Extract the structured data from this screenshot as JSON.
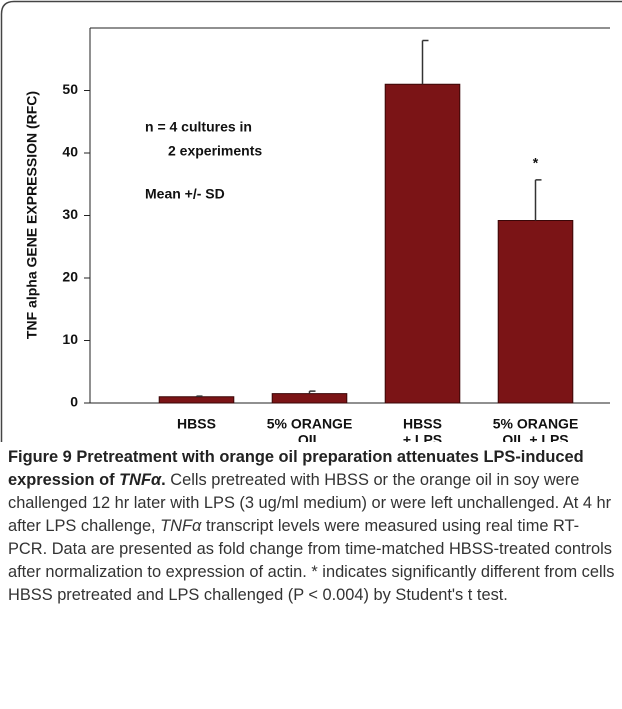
{
  "chart_data": {
    "type": "bar",
    "y_label": "TNF alpha GENE EXPRESSION (RFC)",
    "categories": [
      [
        "HBSS"
      ],
      [
        "5% ORANGE",
        "OIL"
      ],
      [
        "HBSS",
        "+ LPS"
      ],
      [
        "5% ORANGE",
        "OIL + LPS"
      ]
    ],
    "values": [
      1.0,
      1.5,
      51.0,
      29.2
    ],
    "errors": [
      0.1,
      0.4,
      7.0,
      6.5
    ],
    "color": "#7b1416",
    "ylim": [
      0,
      60
    ],
    "yticks": [
      0,
      10,
      20,
      30,
      40,
      50
    ],
    "annotations": [
      "n = 4 cultures in",
      "2 experiments",
      "Mean +/- SD",
      "*"
    ]
  },
  "caption": {
    "label": "Figure 9",
    "title": [
      {
        "text": "Pretreatment with orange oil preparation attenuates LPS-induced expression of "
      },
      {
        "text": "TNFα",
        "italic": true
      },
      {
        "text": "."
      }
    ],
    "body": [
      {
        "text": "Cells pretreated with HBSS or the orange oil in soy were challenged 12 hr later with LPS (3 ug/ml medium) or were left unchallenged. At 4 hr after LPS challenge, "
      },
      {
        "text": "TNFα",
        "italic": true
      },
      {
        "text": " transcript levels were measured using real time RT-PCR. Data are presented as fold change from time-matched HBSS-treated controls after normalization to expression of actin. * indicates significantly different from cells HBSS pretreated and LPS challenged (P < 0.004) by Student's t test."
      }
    ]
  }
}
